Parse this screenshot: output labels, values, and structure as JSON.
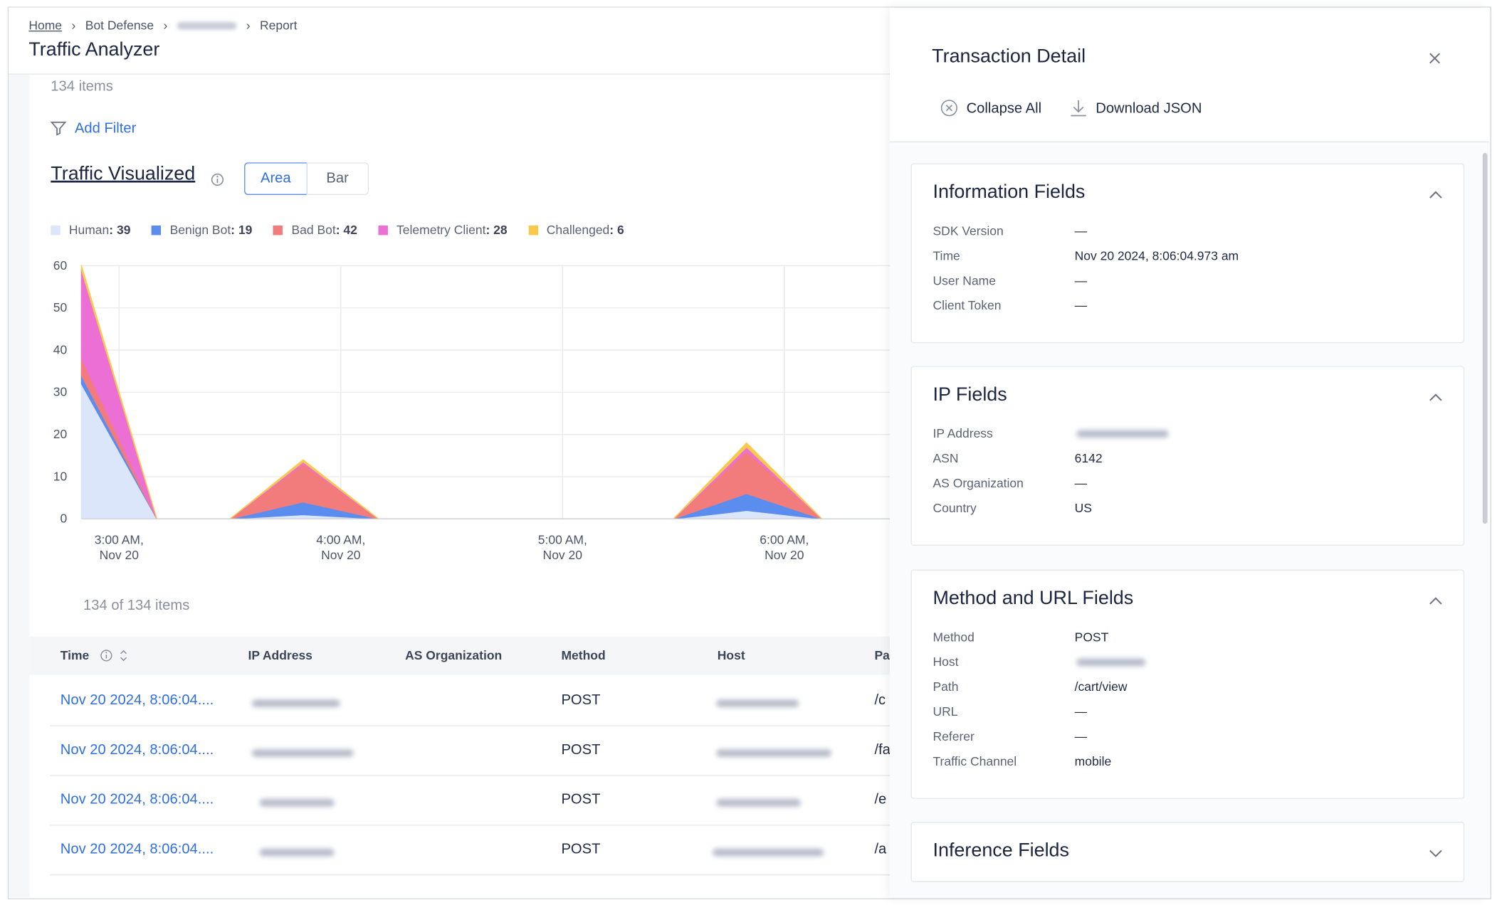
{
  "breadcrumbs": {
    "home": "Home",
    "section": "Bot Defense",
    "page": "Report"
  },
  "header": {
    "title": "Traffic Analyzer"
  },
  "item_count": "134 items",
  "add_filter": "Add Filter",
  "chart_data": {
    "type": "area",
    "stacked": true,
    "title": "Traffic Visualized",
    "view_options": [
      "Area",
      "Bar"
    ],
    "selected_view": 0,
    "x": [
      2.83,
      3.17,
      3.5,
      3.83,
      4.17,
      4.5,
      4.83,
      5.17,
      5.5,
      5.83,
      6.17
    ],
    "xlim": [
      2.83,
      6.48
    ],
    "xticks": [
      {
        "value": 3,
        "label": "3:00 AM, Nov 20"
      },
      {
        "value": 4,
        "label": "4:00 AM, Nov 20"
      },
      {
        "value": 5,
        "label": "5:00 AM, Nov 20"
      },
      {
        "value": 6,
        "label": "6:00 AM, Nov 20"
      }
    ],
    "ylim": [
      0,
      60
    ],
    "yticks": [
      0,
      10,
      20,
      30,
      40,
      50,
      60
    ],
    "grid": true,
    "series": [
      {
        "name": "Human",
        "total": 39,
        "total_label": ": 39",
        "color": "#dce6fb",
        "values": [
          32,
          0,
          0,
          1,
          0,
          0,
          0,
          0,
          0,
          2,
          0
        ]
      },
      {
        "name": "Benign Bot",
        "total": 19,
        "total_label": ": 19",
        "color": "#5b8def",
        "values": [
          2,
          0,
          0,
          3,
          0,
          0,
          0,
          0,
          0,
          4,
          0
        ]
      },
      {
        "name": "Bad Bot",
        "total": 42,
        "total_label": ": 42",
        "color": "#f27b7b",
        "values": [
          4,
          0,
          0,
          9,
          0,
          0,
          0,
          0,
          0,
          10,
          0
        ]
      },
      {
        "name": "Telemetry Client",
        "total": 28,
        "total_label": ": 28",
        "color": "#ec6fd6",
        "values": [
          21,
          0,
          0,
          0.5,
          0,
          0,
          0,
          0,
          0,
          1,
          0
        ]
      },
      {
        "name": "Challenged",
        "total": 6,
        "total_label": ": 6",
        "color": "#f8c94a",
        "values": [
          1,
          0,
          0,
          0.5,
          0,
          0,
          0,
          0,
          0,
          1,
          0
        ]
      }
    ]
  },
  "table": {
    "count": "134 of 134 items",
    "columns": [
      "Time",
      "IP Address",
      "AS Organization",
      "Method",
      "Host",
      "Pa"
    ],
    "rows": [
      {
        "time": "Nov 20 2024, 8:06:04....",
        "method": "POST",
        "path": "/c"
      },
      {
        "time": "Nov 20 2024, 8:06:04....",
        "method": "POST",
        "path": "/fa"
      },
      {
        "time": "Nov 20 2024, 8:06:04....",
        "method": "POST",
        "path": "/e"
      },
      {
        "time": "Nov 20 2024, 8:06:04....",
        "method": "POST",
        "path": "/a"
      }
    ]
  },
  "panel": {
    "title": "Transaction Detail",
    "actions": [
      "Collapse All",
      "Download JSON"
    ],
    "sections": [
      {
        "title": "Information Fields",
        "expanded": true,
        "fields": [
          {
            "label": "SDK Version",
            "value": "—"
          },
          {
            "label": "Time",
            "value": "Nov 20 2024, 8:06:04.973 am"
          },
          {
            "label": "User Name",
            "value": "—"
          },
          {
            "label": "Client Token",
            "value": "—"
          }
        ]
      },
      {
        "title": "IP Fields",
        "expanded": true,
        "fields": [
          {
            "label": "IP Address"
          },
          {
            "label": "ASN",
            "value": "6142"
          },
          {
            "label": "AS Organization",
            "value": "—"
          },
          {
            "label": "Country",
            "value": "US"
          }
        ]
      },
      {
        "title": "Method and URL Fields",
        "expanded": true,
        "fields": [
          {
            "label": "Method",
            "value": "POST"
          },
          {
            "label": "Host"
          },
          {
            "label": "Path",
            "value": "/cart/view"
          },
          {
            "label": "URL",
            "value": "—"
          },
          {
            "label": "Referer",
            "value": "—"
          },
          {
            "label": "Traffic Channel",
            "value": "mobile"
          }
        ]
      },
      {
        "title": "Inference Fields",
        "expanded": false,
        "fields": []
      }
    ]
  }
}
